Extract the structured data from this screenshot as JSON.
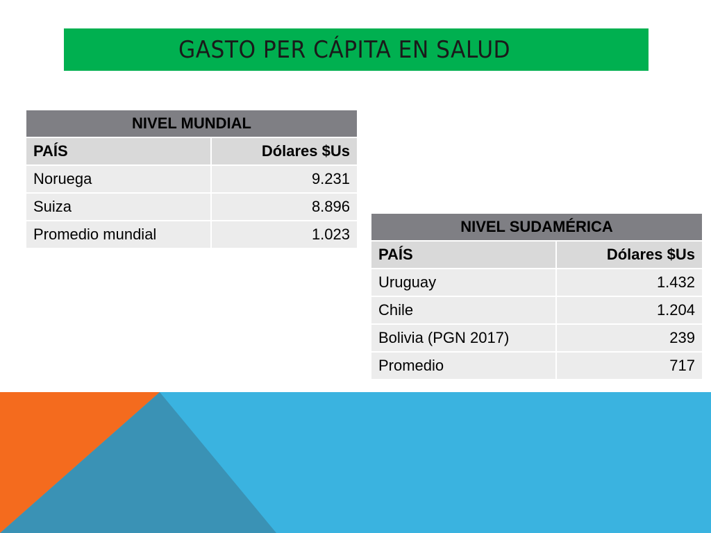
{
  "slide": {
    "title": "GASTO PER CÁPITA EN SALUD"
  },
  "tables": {
    "world": {
      "title": "NIVEL MUNDIAL",
      "headers": [
        "PAÍS",
        "Dólares $Us"
      ],
      "rows": [
        [
          "Noruega",
          "9.231"
        ],
        [
          "Suiza",
          "8.896"
        ],
        [
          "Promedio mundial",
          "1.023"
        ]
      ]
    },
    "south_america": {
      "title": "NIVEL SUDAMÉRICA",
      "headers": [
        "PAÍS",
        "Dólares $Us"
      ],
      "rows": [
        [
          "Uruguay",
          "1.432"
        ],
        [
          "Chile",
          "1.204"
        ],
        [
          "Bolivia (PGN 2017)",
          "239"
        ],
        [
          "Promedio",
          "717"
        ]
      ]
    }
  },
  "colors": {
    "title_bar": "#00b050",
    "table_title_bg": "#7f7f84",
    "table_header_bg": "#d9d9d9",
    "table_body_bg": "#ececec",
    "footer_blue": "#3ab3e0",
    "footer_orange": "#f46b1e",
    "footer_teal": "#3a92b5"
  }
}
